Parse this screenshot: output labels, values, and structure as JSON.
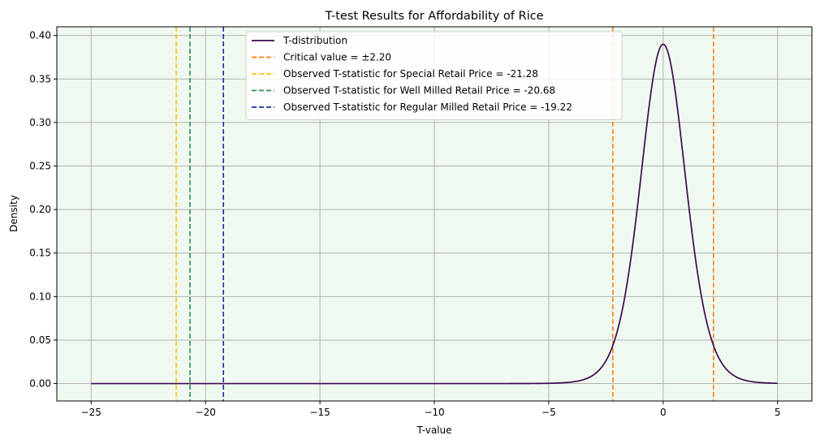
{
  "chart_data": {
    "type": "line",
    "title": "T-test Results for Affordability of Rice",
    "xlabel": "T-value",
    "ylabel": "Density",
    "xlim": [
      -26.5,
      6.5
    ],
    "ylim": [
      -0.02,
      0.41
    ],
    "xticks": [
      -25,
      -20,
      -15,
      -10,
      -5,
      0,
      5
    ],
    "xtick_labels": [
      "−25",
      "−20",
      "−15",
      "−10",
      "−5",
      "0",
      "5"
    ],
    "yticks": [
      0.0,
      0.05,
      0.1,
      0.15,
      0.2,
      0.25,
      0.3,
      0.35,
      0.4
    ],
    "ytick_labels": [
      "0.00",
      "0.05",
      "0.10",
      "0.15",
      "0.20",
      "0.25",
      "0.30",
      "0.35",
      "0.40"
    ],
    "grid": true,
    "background": "#f0f9f0",
    "legend_position": "top-center",
    "curve": {
      "name": "T-distribution",
      "degrees_of_freedom": 11,
      "x_range": [
        -25,
        5
      ],
      "color": "#3b0a4f"
    },
    "critical_value": {
      "name": "Critical value = ±2.20",
      "values": [
        -2.2,
        2.2
      ],
      "color": "#ff7f0e"
    },
    "observed": [
      {
        "name": "Observed T-statistic for Special Retail Price = -21.28",
        "value": -21.28,
        "color": "#ffc20e"
      },
      {
        "name": "Observed T-statistic for Well Milled Retail Price = -20.68",
        "value": -20.68,
        "color": "#2e8b57"
      },
      {
        "name": "Observed T-statistic for Regular Milled Retail Price = -19.22",
        "value": -19.22,
        "color": "#1f2a9e"
      }
    ]
  }
}
